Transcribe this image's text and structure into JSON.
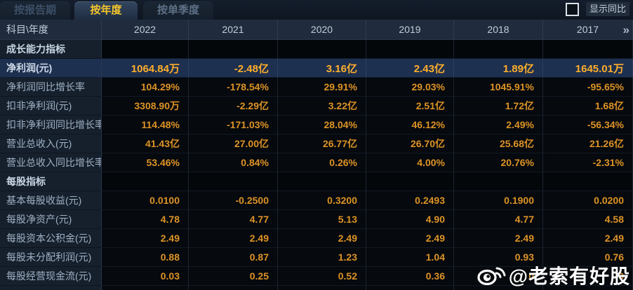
{
  "tabs": [
    {
      "label": "按报告期",
      "active": false
    },
    {
      "label": "按年度",
      "active": true
    },
    {
      "label": "按单季度",
      "active": false
    }
  ],
  "controls": {
    "show_yoy_label": "显示同比",
    "checkbox_checked": false
  },
  "table": {
    "corner_label": "科目\\年度",
    "years": [
      "2022",
      "2021",
      "2020",
      "2019",
      "2018",
      "2017"
    ],
    "more_years_icon": "»",
    "rows": [
      {
        "type": "section",
        "label": "成长能力指标",
        "values": [
          "",
          "",
          "",
          "",
          "",
          ""
        ]
      },
      {
        "type": "highlight",
        "label": "净利润(元)",
        "values": [
          "1064.84万",
          "-2.48亿",
          "3.16亿",
          "2.43亿",
          "1.89亿",
          "1645.01万"
        ]
      },
      {
        "type": "data",
        "label": "净利润同比增长率",
        "values": [
          "104.29%",
          "-178.54%",
          "29.91%",
          "29.03%",
          "1045.91%",
          "-95.65%"
        ]
      },
      {
        "type": "data",
        "label": "扣非净利润(元)",
        "values": [
          "3308.90万",
          "-2.29亿",
          "3.22亿",
          "2.51亿",
          "1.72亿",
          "1.68亿"
        ]
      },
      {
        "type": "data",
        "label": "扣非净利润同比增长率",
        "values": [
          "114.48%",
          "-171.03%",
          "28.04%",
          "46.12%",
          "2.49%",
          "-56.34%"
        ]
      },
      {
        "type": "data",
        "label": "营业总收入(元)",
        "values": [
          "41.43亿",
          "27.00亿",
          "26.77亿",
          "26.70亿",
          "25.68亿",
          "21.26亿"
        ]
      },
      {
        "type": "data",
        "label": "营业总收入同比增长率",
        "values": [
          "53.46%",
          "0.84%",
          "0.26%",
          "4.00%",
          "20.76%",
          "-2.31%"
        ]
      },
      {
        "type": "section",
        "label": "每股指标",
        "values": [
          "",
          "",
          "",
          "",
          "",
          ""
        ]
      },
      {
        "type": "data",
        "label": "基本每股收益(元)",
        "values": [
          "0.0100",
          "-0.2500",
          "0.3200",
          "0.2493",
          "0.1900",
          "0.0200"
        ]
      },
      {
        "type": "data",
        "label": "每股净资产(元)",
        "values": [
          "4.78",
          "4.77",
          "5.13",
          "4.90",
          "4.77",
          "4.58"
        ]
      },
      {
        "type": "data",
        "label": "每股资本公积金(元)",
        "values": [
          "2.49",
          "2.49",
          "2.49",
          "2.49",
          "2.49",
          "2.49"
        ]
      },
      {
        "type": "data",
        "label": "每股未分配利润(元)",
        "values": [
          "0.88",
          "0.87",
          "1.23",
          "1.04",
          "0.93",
          "0.76"
        ]
      },
      {
        "type": "data",
        "label": "每股经营现金流(元)",
        "values": [
          "0.03",
          "0.25",
          "0.52",
          "0.36",
          "0",
          "9"
        ]
      }
    ]
  },
  "watermark": {
    "text": "@老索有好股",
    "icon": "weibo-logo"
  },
  "colors": {
    "accent_orange": "#dd9326",
    "highlight_orange": "#ffae2b",
    "active_tab_text": "#f6c62d",
    "highlight_row_bg": "#1e3050",
    "header_bg": "#202c3d",
    "label_col_bg": "#16202d"
  }
}
